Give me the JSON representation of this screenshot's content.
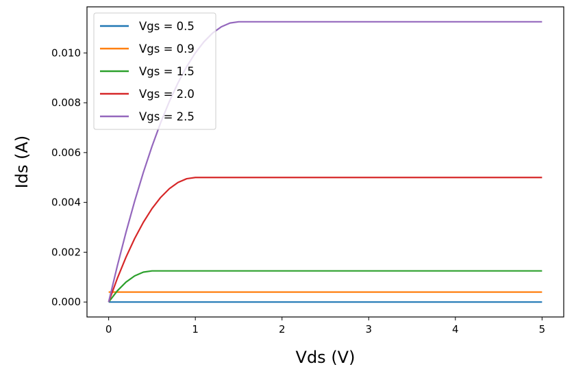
{
  "chart_data": {
    "type": "line",
    "title": "",
    "xlabel": "Vds (V)",
    "ylabel": "Ids (A)",
    "xlim": [
      -0.25,
      5.25
    ],
    "ylim": [
      -0.0006,
      0.01185
    ],
    "xticks": [
      0,
      1,
      2,
      3,
      4,
      5
    ],
    "xtick_labels": [
      "0",
      "1",
      "2",
      "3",
      "4",
      "5"
    ],
    "yticks": [
      0.0,
      0.002,
      0.004,
      0.006,
      0.008,
      0.01
    ],
    "ytick_labels": [
      "0.000",
      "0.002",
      "0.004",
      "0.006",
      "0.008",
      "0.010"
    ],
    "grid": false,
    "legend_position": "top-left",
    "x": [
      0,
      0.1,
      0.2,
      0.3,
      0.4,
      0.5,
      0.6,
      0.7,
      0.8,
      0.9,
      1.0,
      1.1,
      1.2,
      1.3,
      1.4,
      1.5,
      2.0,
      2.5,
      3.0,
      3.5,
      4.0,
      4.5,
      5.0
    ],
    "series": [
      {
        "name": "Vgs = 0.5",
        "color": "#1f77b4",
        "values": [
          0,
          0,
          0,
          0,
          0,
          0,
          0,
          0,
          0,
          0,
          0,
          0,
          0,
          0,
          0,
          0,
          0,
          0,
          0,
          0,
          0,
          0,
          0
        ]
      },
      {
        "name": "Vgs = 0.9",
        "color": "#ff7f0e",
        "values": [
          0.0004,
          0.0004,
          0.0004,
          0.0004,
          0.0004,
          0.0004,
          0.0004,
          0.0004,
          0.0004,
          0.0004,
          0.0004,
          0.0004,
          0.0004,
          0.0004,
          0.0004,
          0.0004,
          0.0004,
          0.0004,
          0.0004,
          0.0004,
          0.0004,
          0.0004,
          0.0004
        ]
      },
      {
        "name": "Vgs = 1.5",
        "color": "#2ca02c",
        "values": [
          0,
          0.00045,
          0.0008,
          0.00105,
          0.0012,
          0.00125,
          0.00125,
          0.00125,
          0.00125,
          0.00125,
          0.00125,
          0.00125,
          0.00125,
          0.00125,
          0.00125,
          0.00125,
          0.00125,
          0.00125,
          0.00125,
          0.00125,
          0.00125,
          0.00125,
          0.00125
        ]
      },
      {
        "name": "Vgs = 2.0",
        "color": "#d62728",
        "values": [
          0,
          0.00095,
          0.0018,
          0.00255,
          0.0032,
          0.00375,
          0.0042,
          0.00455,
          0.0048,
          0.00495,
          0.005,
          0.005,
          0.005,
          0.005,
          0.005,
          0.005,
          0.005,
          0.005,
          0.005,
          0.005,
          0.005,
          0.005,
          0.005
        ]
      },
      {
        "name": "Vgs = 2.5",
        "color": "#9467bd",
        "values": [
          0,
          0.00145,
          0.0028,
          0.00405,
          0.0052,
          0.00625,
          0.0072,
          0.00805,
          0.0088,
          0.00945,
          0.01,
          0.01045,
          0.0108,
          0.01105,
          0.0112,
          0.01125,
          0.01125,
          0.01125,
          0.01125,
          0.01125,
          0.01125,
          0.01125,
          0.01125
        ]
      }
    ]
  }
}
